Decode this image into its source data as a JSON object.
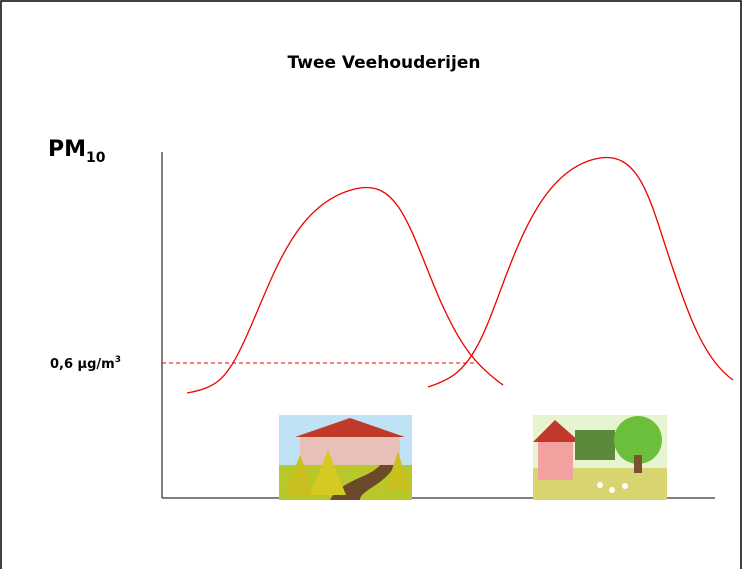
{
  "title": "Twee Veehouderijen",
  "y_axis_label": {
    "text": "PM",
    "subscript": "10"
  },
  "threshold_label": {
    "text": "0,6 µg/m",
    "superscript": "3"
  }
}
